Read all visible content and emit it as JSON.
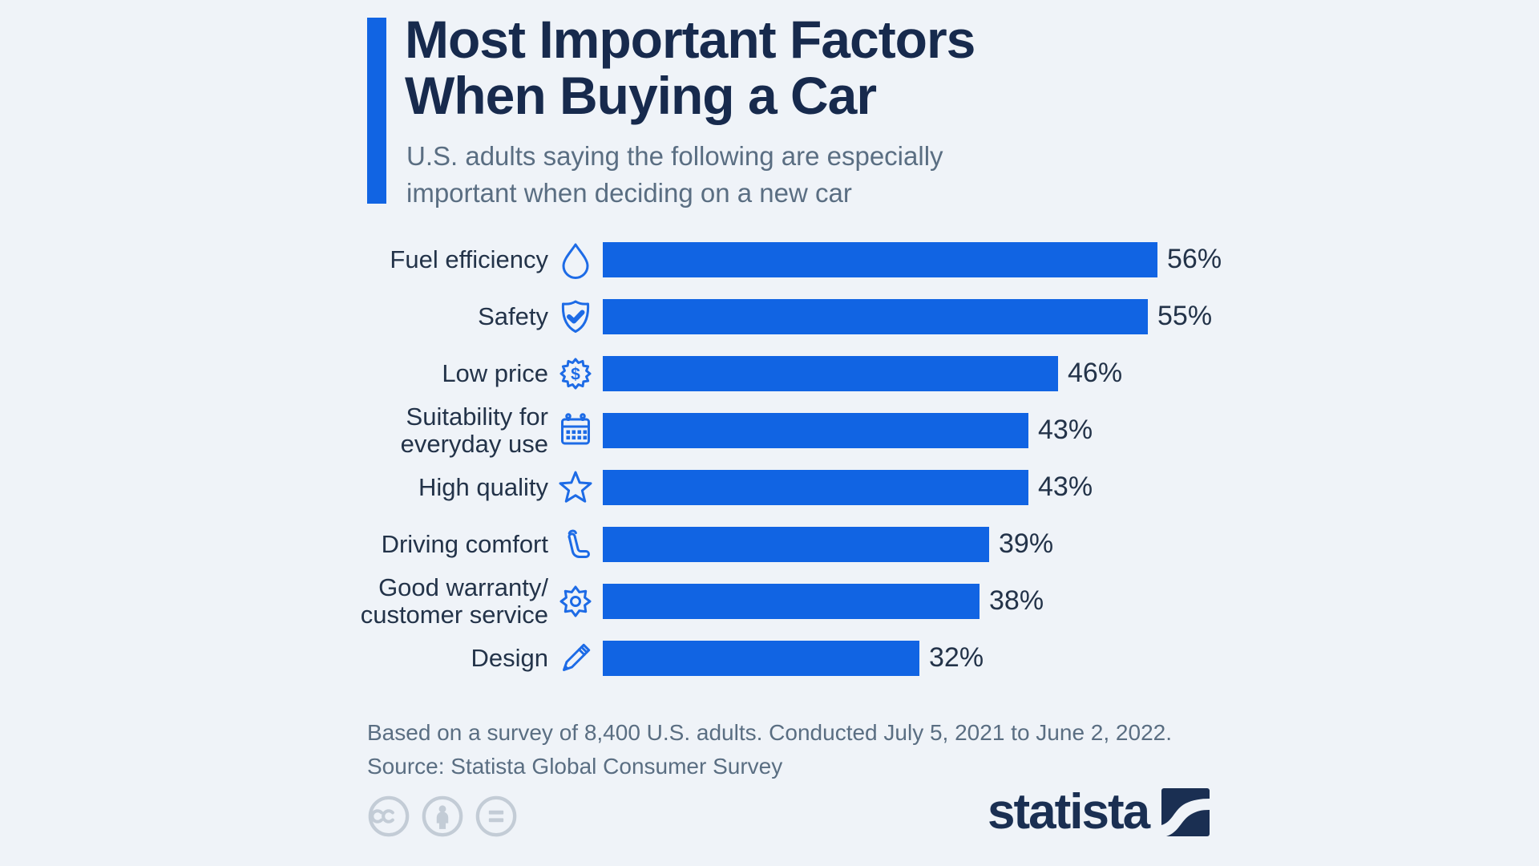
{
  "colors": {
    "accent": "#1164e3",
    "icon_stroke": "#1d6be6",
    "title": "#172a4d",
    "muted": "#5a6e82",
    "background": "#eff3f8",
    "license_gray": "#c3ccd6",
    "logo_navy": "#1a2f52"
  },
  "header": {
    "title": "Most Important Factors When Buying a Car",
    "title_lines": [
      "Most Important Factors",
      "When Buying a Car"
    ],
    "subtitle": "U.S. adults saying the following are especially important when deciding on a new car",
    "subtitle_lines": [
      "U.S. adults saying the following are especially",
      "important when deciding on a new car"
    ]
  },
  "chart_data": {
    "type": "bar",
    "orientation": "horizontal",
    "title": "Most Important Factors When Buying a Car",
    "categories": [
      "Fuel efficiency",
      "Safety",
      "Low price",
      "Suitability for everyday use",
      "High quality",
      "Driving comfort",
      "Good warranty/customer service",
      "Design"
    ],
    "values": [
      56,
      55,
      46,
      43,
      43,
      39,
      38,
      32
    ],
    "unit": "%",
    "xlim": [
      0,
      56
    ],
    "bar_color": "#1164e3",
    "grid": false,
    "legend": false,
    "value_labels": [
      "56%",
      "55%",
      "46%",
      "43%",
      "43%",
      "39%",
      "38%",
      "32%"
    ],
    "rows": [
      {
        "label_lines": [
          "Fuel efficiency"
        ],
        "icon": "water-drop",
        "value": 56,
        "value_label": "56%"
      },
      {
        "label_lines": [
          "Safety"
        ],
        "icon": "shield-check",
        "value": 55,
        "value_label": "55%"
      },
      {
        "label_lines": [
          "Low price"
        ],
        "icon": "dollar-badge",
        "value": 46,
        "value_label": "46%"
      },
      {
        "label_lines": [
          "Suitability for",
          "everyday use"
        ],
        "icon": "calendar",
        "value": 43,
        "value_label": "43%"
      },
      {
        "label_lines": [
          "High quality"
        ],
        "icon": "star",
        "value": 43,
        "value_label": "43%"
      },
      {
        "label_lines": [
          "Driving comfort"
        ],
        "icon": "car-seat",
        "value": 39,
        "value_label": "39%"
      },
      {
        "label_lines": [
          "Good warranty/",
          "customer service"
        ],
        "icon": "gear",
        "value": 38,
        "value_label": "38%"
      },
      {
        "label_lines": [
          "Design"
        ],
        "icon": "pen",
        "value": 32,
        "value_label": "32%"
      }
    ]
  },
  "footer": {
    "note": "Based on a survey of 8,400 U.S. adults. Conducted July 5, 2021 to June 2, 2022.",
    "source": "Source: Statista Global Consumer Survey"
  },
  "license": {
    "icons": [
      "creative-commons",
      "attribution",
      "no-derivatives"
    ]
  },
  "branding": {
    "logo_text": "statista"
  }
}
